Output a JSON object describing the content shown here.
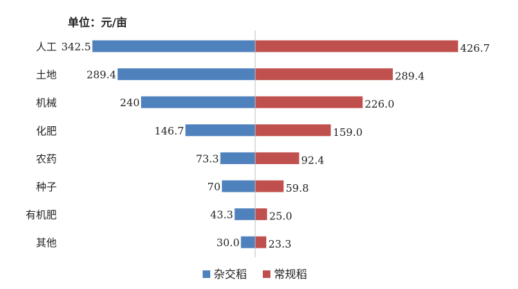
{
  "chart_data": {
    "type": "bar",
    "orientation": "horizontal-diverging",
    "unit_label": "单位：元/亩",
    "categories": [
      "人工",
      "土地",
      "机械",
      "化肥",
      "农药",
      "种子",
      "有机肥",
      "其他"
    ],
    "series": [
      {
        "name": "杂交稻",
        "values": [
          342.5,
          289.4,
          240,
          146.7,
          73.3,
          70,
          43.3,
          30.0
        ],
        "labels": [
          "342.5",
          "289.4",
          "240",
          "146.7",
          "73.3",
          "70",
          "43.3",
          "30.0"
        ],
        "color": "#4f81bd"
      },
      {
        "name": "常规稻",
        "values": [
          426.7,
          289.4,
          226.0,
          159.0,
          92.4,
          59.8,
          25.0,
          23.3
        ],
        "labels": [
          "426.7",
          "289.4",
          "226.0",
          "159.0",
          "92.4",
          "59.8",
          "25.0",
          "23.3"
        ],
        "color": "#c0504d"
      }
    ],
    "legend_position": "bottom",
    "grid": false
  }
}
